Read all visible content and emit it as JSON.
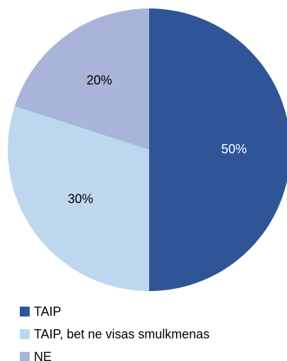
{
  "chart_data": {
    "type": "pie",
    "categories": [
      "TAIP",
      "TAIP, bet ne visas smulkmenas",
      "NE"
    ],
    "values": [
      50,
      30,
      20
    ],
    "value_labels": [
      "50%",
      "30%",
      "20%"
    ],
    "colors": [
      "#2f5597",
      "#bdd7ee",
      "#a9b4da"
    ],
    "label_colors": [
      "#ffffff",
      "#000000",
      "#000000"
    ],
    "legend": "bottom"
  }
}
